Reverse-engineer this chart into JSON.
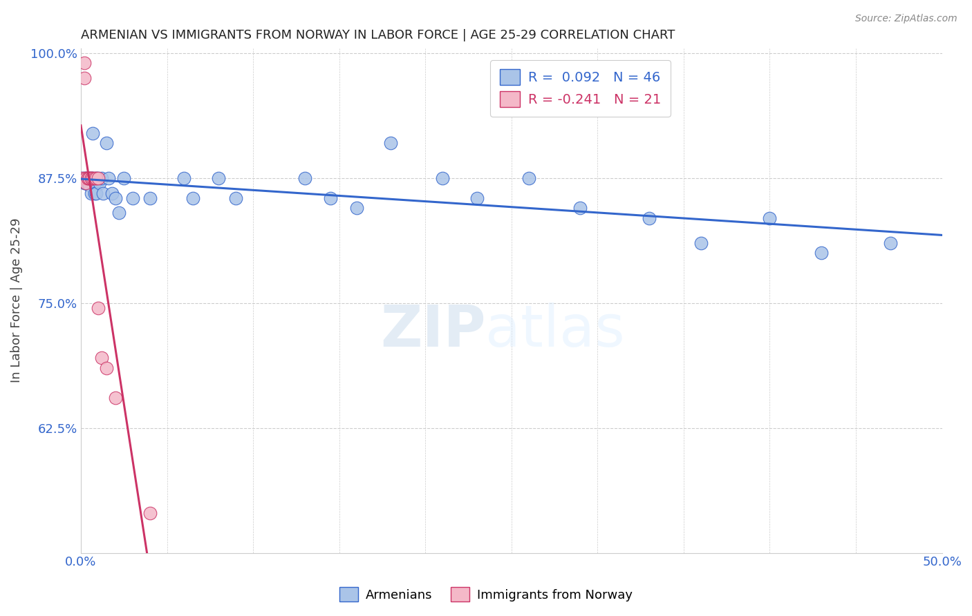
{
  "title": "ARMENIAN VS IMMIGRANTS FROM NORWAY IN LABOR FORCE | AGE 25-29 CORRELATION CHART",
  "source": "Source: ZipAtlas.com",
  "ylabel": "In Labor Force | Age 25-29",
  "xlim": [
    0.0,
    0.5
  ],
  "ylim": [
    0.5,
    1.005
  ],
  "yticks": [
    0.625,
    0.75,
    0.875,
    1.0
  ],
  "ytick_labels": [
    "62.5%",
    "75.0%",
    "87.5%",
    "100.0%"
  ],
  "xticks": [
    0.0,
    0.05,
    0.1,
    0.15,
    0.2,
    0.25,
    0.3,
    0.35,
    0.4,
    0.45,
    0.5
  ],
  "xtick_labels": [
    "0.0%",
    "",
    "",
    "",
    "",
    "",
    "",
    "",
    "",
    "",
    "50.0%"
  ],
  "blue_color": "#aac4e8",
  "pink_color": "#f4b8c8",
  "blue_line_color": "#3366CC",
  "pink_line_color": "#cc3366",
  "blue_R": 0.092,
  "blue_N": 46,
  "pink_R": -0.241,
  "pink_N": 21,
  "blue_x": [
    0.001,
    0.002,
    0.002,
    0.003,
    0.003,
    0.004,
    0.004,
    0.005,
    0.005,
    0.006,
    0.006,
    0.007,
    0.007,
    0.008,
    0.008,
    0.009,
    0.009,
    0.01,
    0.011,
    0.012,
    0.013,
    0.015,
    0.016,
    0.018,
    0.02,
    0.022,
    0.025,
    0.03,
    0.04,
    0.06,
    0.065,
    0.08,
    0.09,
    0.13,
    0.145,
    0.16,
    0.18,
    0.21,
    0.23,
    0.26,
    0.29,
    0.33,
    0.36,
    0.4,
    0.43,
    0.47
  ],
  "blue_y": [
    0.875,
    0.875,
    0.87,
    0.875,
    0.87,
    0.875,
    0.87,
    0.875,
    0.868,
    0.875,
    0.86,
    0.92,
    0.875,
    0.87,
    0.86,
    0.875,
    0.86,
    0.875,
    0.87,
    0.875,
    0.86,
    0.91,
    0.875,
    0.86,
    0.855,
    0.84,
    0.875,
    0.855,
    0.855,
    0.875,
    0.855,
    0.875,
    0.855,
    0.875,
    0.855,
    0.845,
    0.91,
    0.875,
    0.855,
    0.875,
    0.845,
    0.835,
    0.81,
    0.835,
    0.8,
    0.81
  ],
  "pink_x": [
    0.001,
    0.002,
    0.002,
    0.003,
    0.003,
    0.003,
    0.004,
    0.004,
    0.005,
    0.005,
    0.006,
    0.006,
    0.007,
    0.008,
    0.009,
    0.01,
    0.01,
    0.012,
    0.015,
    0.02,
    0.04
  ],
  "pink_y": [
    0.875,
    0.99,
    0.975,
    0.875,
    0.875,
    0.87,
    0.875,
    0.875,
    0.875,
    0.875,
    0.875,
    0.875,
    0.875,
    0.875,
    0.875,
    0.875,
    0.745,
    0.695,
    0.685,
    0.655,
    0.54
  ],
  "legend_armenians": "Armenians",
  "legend_norway": "Immigrants from Norway",
  "axis_color": "#3366CC",
  "background_color": "#FFFFFF",
  "watermark_zip": "ZIP",
  "watermark_atlas": "atlas"
}
